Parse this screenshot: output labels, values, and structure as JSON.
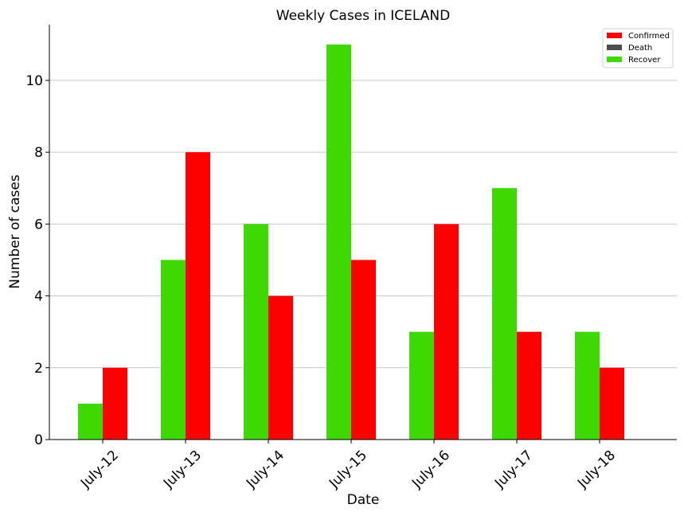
{
  "chart_data": {
    "type": "bar",
    "title": "Weekly Cases in ICELAND",
    "xlabel": "Date",
    "ylabel": "Number of cases",
    "categories": [
      "July-12",
      "July-13",
      "July-14",
      "July-15",
      "July-16",
      "July-17",
      "July-18"
    ],
    "series": [
      {
        "name": "Recover",
        "color": "#3dd900",
        "values": [
          1,
          5,
          6,
          11,
          3,
          7,
          3
        ]
      },
      {
        "name": "Confirmed",
        "color": "#ff0000",
        "values": [
          2,
          8,
          4,
          5,
          6,
          3,
          2
        ]
      },
      {
        "name": "Death",
        "color": "#4d4d4d",
        "values": [
          0,
          0,
          0,
          0,
          0,
          0,
          0
        ]
      }
    ],
    "legend_order": [
      "Confirmed",
      "Death",
      "Recover"
    ],
    "ylim": [
      0,
      11.55
    ],
    "yticks": [
      0,
      2,
      4,
      6,
      8,
      10
    ],
    "grid": "horizontal",
    "legend_position": "top-right",
    "xtick_rotation": 45
  }
}
